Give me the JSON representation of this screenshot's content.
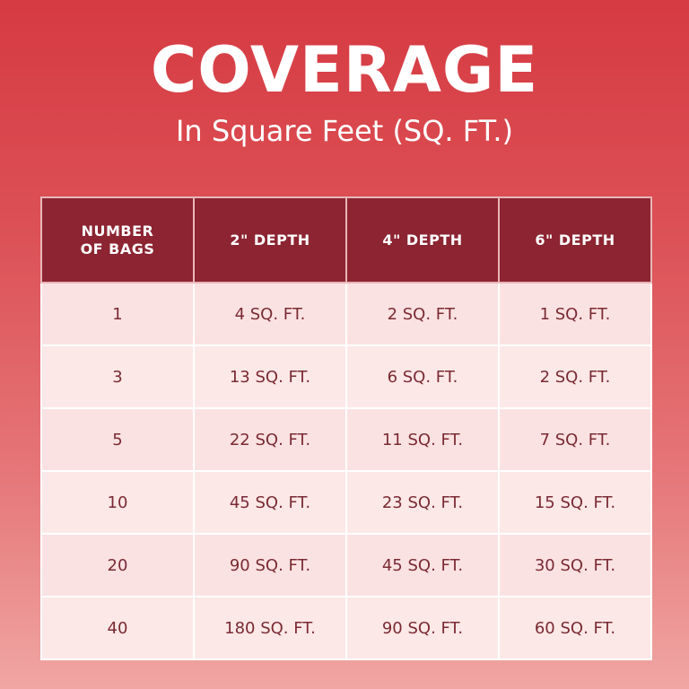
{
  "title": "COVERAGE",
  "subtitle": "In Square Feet (SQ. FT.)",
  "table": {
    "headers": [
      "NUMBER\nOF BAGS",
      "2\" DEPTH",
      "4\" DEPTH",
      "6\" DEPTH"
    ],
    "rows": [
      [
        "1",
        "4 SQ. FT.",
        "2 SQ. FT.",
        "1 SQ. FT."
      ],
      [
        "3",
        "13 SQ. FT.",
        "6 SQ. FT.",
        "2 SQ. FT."
      ],
      [
        "5",
        "22 SQ. FT.",
        "11 SQ. FT.",
        "7 SQ. FT."
      ],
      [
        "10",
        "45 SQ. FT.",
        "23 SQ. FT.",
        "15 SQ. FT."
      ],
      [
        "20",
        "90 SQ. FT.",
        "45 SQ. FT.",
        "30 SQ. FT."
      ],
      [
        "40",
        "180 SQ. FT.",
        "90 SQ. FT.",
        "60 SQ. FT."
      ]
    ]
  },
  "colors": {
    "header_background": "#8c2431",
    "cell_background": "#fbe2e2",
    "cell_text": "#7a2a33",
    "page_gradient_top": "#d63a42",
    "page_gradient_bottom": "#f0a6a3"
  }
}
